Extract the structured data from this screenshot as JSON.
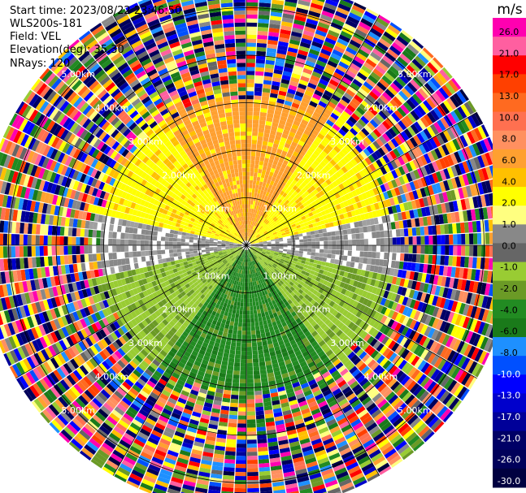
{
  "info": {
    "start_time": "Start time: 2023/08/22 23:46:50",
    "instrument": "WLS200s-181",
    "field": "Field: VEL",
    "elevation": "Elevation(deg): 35.30",
    "nrays": "NRays: 120"
  },
  "chart_data": {
    "type": "ppi",
    "field": "VEL",
    "units": "m/s",
    "nrays": 120,
    "elevation_deg": 35.3,
    "range_rings_km": [
      1.0,
      2.0,
      3.0,
      4.0,
      5.0
    ],
    "ring_labels": [
      "1.00km",
      "2.00km",
      "3.00km",
      "4.00km",
      "5.00km"
    ],
    "spoke_angles_deg": [
      0,
      30,
      60,
      90,
      120,
      150,
      180,
      210,
      240,
      270,
      300,
      330
    ],
    "max_range_km": 5.6,
    "colorbar": {
      "label": "m/s",
      "ticks": [
        "26.0",
        "21.0",
        "17.0",
        "13.0",
        "10.0",
        "8.0",
        "6.0",
        "4.0",
        "2.0",
        "1.0",
        "0.0",
        "-1.0",
        "-2.0",
        "-4.0",
        "-6.0",
        "-8.0",
        "-10.0",
        "-13.0",
        "-17.0",
        "-21.0",
        "-26.0",
        "-30.0"
      ],
      "colors": [
        "#ff00b0",
        "#ff5fa0",
        "#ff0000",
        "#ff4000",
        "#ff6a20",
        "#ff7050",
        "#ff9060",
        "#ffa030",
        "#ffc000",
        "#ffff00",
        "#ffff80",
        "#888888",
        "#666666",
        "#99cc33",
        "#6b9a26",
        "#228b22",
        "#1a7a1a",
        "#1e90ff",
        "#0050ff",
        "#0000ff",
        "#0000cc",
        "#000099",
        "#000066",
        "#00005a",
        "#000040"
      ]
    }
  }
}
